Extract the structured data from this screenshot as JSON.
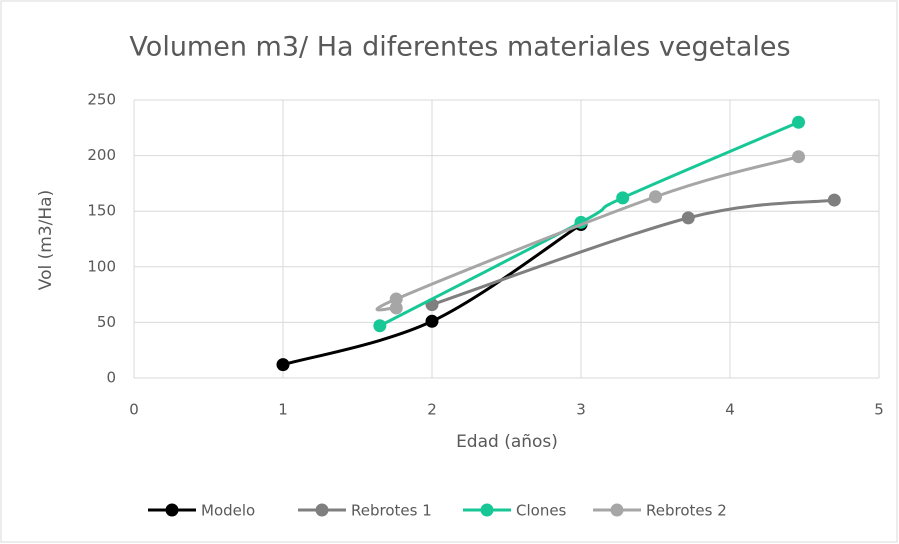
{
  "chart_data": {
    "type": "line",
    "title": "Volumen m3/ Ha diferentes materiales vegetales",
    "x_label": "Edad (años)",
    "y_label": "Vol (m3/Ha)",
    "series": [
      {
        "name": "Modelo",
        "color": "#000000",
        "x": [
          1,
          2,
          3
        ],
        "values": [
          12,
          51,
          138
        ]
      },
      {
        "name": "Rebrotes 1",
        "color": "#7f7f7f",
        "x": [
          2,
          3.72,
          4.7
        ],
        "values": [
          66,
          144,
          160
        ]
      },
      {
        "name": "Clones",
        "color": "#17c896",
        "x": [
          1.65,
          3,
          3.28,
          4.46
        ],
        "values": [
          47,
          140,
          162,
          230
        ]
      },
      {
        "name": "Rebrotes 2",
        "color": "#a6a6a6",
        "x": [
          1.76,
          1.76,
          3.5,
          4.46
        ],
        "values": [
          63,
          71,
          163,
          199
        ]
      }
    ],
    "xlim": [
      0,
      5
    ],
    "xticks": [
      0,
      1,
      2,
      3,
      4,
      5
    ],
    "ylim": [
      0,
      250
    ],
    "yticks": [
      0,
      50,
      100,
      150,
      200,
      250
    ],
    "grid": true,
    "legend": "bottom",
    "smooth": true
  }
}
